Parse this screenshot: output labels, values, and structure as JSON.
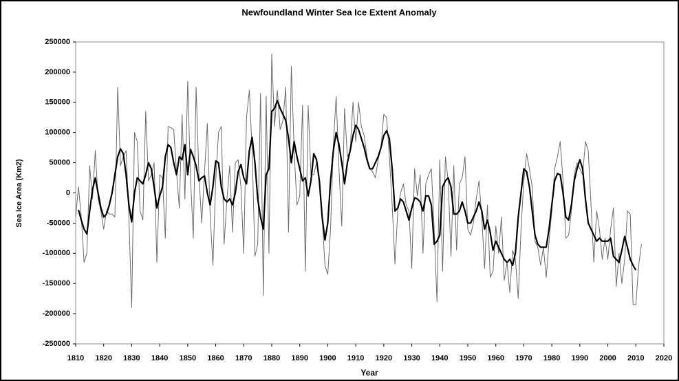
{
  "chart_data": {
    "type": "line",
    "title": "Newfoundland  Winter Sea Ice Extent Anomaly",
    "x_label": "Year",
    "y_label": "Sea Ice Area (Km2)",
    "xlim": [
      1810,
      2020
    ],
    "xticks": [
      1810,
      1820,
      1830,
      1840,
      1850,
      1860,
      1870,
      1880,
      1890,
      1900,
      1910,
      1920,
      1930,
      1940,
      1950,
      1960,
      1970,
      1980,
      1990,
      2000,
      2010,
      2020
    ],
    "ylim": [
      -250000,
      250000
    ],
    "yticks": [
      -250000,
      -200000,
      -150000,
      -100000,
      -50000,
      0,
      50000,
      100000,
      150000,
      200000,
      250000
    ],
    "grid": false,
    "x": [
      1810,
      1811,
      1812,
      1813,
      1814,
      1815,
      1816,
      1817,
      1818,
      1819,
      1820,
      1821,
      1822,
      1823,
      1824,
      1825,
      1826,
      1827,
      1828,
      1829,
      1830,
      1831,
      1832,
      1833,
      1834,
      1835,
      1836,
      1837,
      1838,
      1839,
      1840,
      1841,
      1842,
      1843,
      1844,
      1845,
      1846,
      1847,
      1848,
      1849,
      1850,
      1851,
      1852,
      1853,
      1854,
      1855,
      1856,
      1857,
      1858,
      1859,
      1860,
      1861,
      1862,
      1863,
      1864,
      1865,
      1866,
      1867,
      1868,
      1869,
      1870,
      1871,
      1872,
      1873,
      1874,
      1875,
      1876,
      1877,
      1878,
      1879,
      1880,
      1881,
      1882,
      1883,
      1884,
      1885,
      1886,
      1887,
      1888,
      1889,
      1890,
      1891,
      1892,
      1893,
      1894,
      1895,
      1896,
      1897,
      1898,
      1899,
      1900,
      1901,
      1902,
      1903,
      1904,
      1905,
      1906,
      1907,
      1908,
      1909,
      1910,
      1911,
      1912,
      1913,
      1914,
      1915,
      1916,
      1917,
      1918,
      1919,
      1920,
      1921,
      1922,
      1923,
      1924,
      1925,
      1926,
      1927,
      1928,
      1929,
      1930,
      1931,
      1932,
      1933,
      1934,
      1935,
      1936,
      1937,
      1938,
      1939,
      1940,
      1941,
      1942,
      1943,
      1944,
      1945,
      1946,
      1947,
      1948,
      1949,
      1950,
      1951,
      1952,
      1953,
      1954,
      1955,
      1956,
      1957,
      1958,
      1959,
      1960,
      1961,
      1962,
      1963,
      1964,
      1965,
      1966,
      1967,
      1968,
      1969,
      1970,
      1971,
      1972,
      1973,
      1974,
      1975,
      1976,
      1977,
      1978,
      1979,
      1980,
      1981,
      1982,
      1983,
      1984,
      1985,
      1986,
      1987,
      1988,
      1989,
      1990,
      1991,
      1992,
      1993,
      1994,
      1995,
      1996,
      1997,
      1998,
      1999,
      2000,
      2001,
      2002,
      2003,
      2004,
      2005,
      2006,
      2007,
      2008,
      2009,
      2010,
      2011,
      2012
    ],
    "series": [
      {
        "color": "#6b6b6b",
        "width": 1,
        "values": [
          -40000,
          10000,
          -40000,
          -115000,
          -100000,
          45000,
          -10000,
          70000,
          -10000,
          -30000,
          -60000,
          -30000,
          -35000,
          -35000,
          -40000,
          175000,
          45000,
          60000,
          70000,
          -40000,
          -190000,
          100000,
          85000,
          -30000,
          -45000,
          135000,
          20000,
          30000,
          50000,
          -115000,
          30000,
          25000,
          -75000,
          110000,
          108000,
          105000,
          35000,
          -25000,
          130000,
          -10000,
          185000,
          25000,
          -75000,
          175000,
          30000,
          -50000,
          35000,
          115000,
          -35000,
          -120000,
          20000,
          100000,
          110000,
          -85000,
          -10000,
          45000,
          -65000,
          50000,
          55000,
          10000,
          -100000,
          125000,
          170000,
          70000,
          -105000,
          -85000,
          165000,
          -170000,
          160000,
          -100000,
          230000,
          110000,
          170000,
          105000,
          120000,
          175000,
          -65000,
          210000,
          70000,
          -20000,
          -5000,
          145000,
          -130000,
          145000,
          30000,
          30000,
          50000,
          20000,
          -40000,
          -120000,
          -135000,
          -60000,
          80000,
          160000,
          40000,
          -55000,
          140000,
          60000,
          70000,
          150000,
          85000,
          150000,
          110000,
          95000,
          60000,
          40000,
          35000,
          25000,
          55000,
          75000,
          130000,
          125000,
          60000,
          -20000,
          -118000,
          -30000,
          0,
          15000,
          -20000,
          -30000,
          -125000,
          40000,
          -5000,
          30000,
          -100000,
          15000,
          30000,
          40000,
          -60000,
          -180000,
          55000,
          -130000,
          60000,
          20000,
          -105000,
          45000,
          -95000,
          15000,
          25000,
          60000,
          -60000,
          -70000,
          -50000,
          -10000,
          20000,
          -40000,
          -125000,
          -20000,
          -140000,
          -130000,
          -55000,
          -100000,
          -40000,
          -145000,
          -115000,
          -165000,
          -95000,
          -110000,
          -175000,
          -60000,
          20000,
          65000,
          40000,
          10000,
          -80000,
          -90000,
          -120000,
          -90000,
          -140000,
          -80000,
          -30000,
          40000,
          60000,
          85000,
          20000,
          -75000,
          -70000,
          -30000,
          30000,
          50000,
          40000,
          30000,
          85000,
          70000,
          -20000,
          -115000,
          -30000,
          -60000,
          -110000,
          -75000,
          -110000,
          -60000,
          -25000,
          -155000,
          -100000,
          -150000,
          -110000,
          -30000,
          -35000,
          -185000,
          -185000,
          -120000,
          -85000
        ]
      },
      {
        "color": "#000000",
        "width": 2.2,
        "values": [
          null,
          -28000,
          -45000,
          -60000,
          -68000,
          -30000,
          5000,
          25000,
          0,
          -25000,
          -40000,
          -35000,
          -20000,
          0,
          30000,
          60000,
          73000,
          65000,
          30000,
          -20000,
          -48000,
          0,
          25000,
          20000,
          15000,
          30000,
          50000,
          40000,
          10000,
          -25000,
          -5000,
          10000,
          60000,
          80000,
          75000,
          50000,
          30000,
          60000,
          55000,
          80000,
          30000,
          72000,
          60000,
          45000,
          20000,
          25000,
          28000,
          0,
          -20000,
          10000,
          53000,
          50000,
          10000,
          -10000,
          -15000,
          -10000,
          -20000,
          0,
          35000,
          47000,
          25000,
          15000,
          70000,
          92000,
          50000,
          -10000,
          -40000,
          -60000,
          30000,
          40000,
          135000,
          140000,
          153000,
          140000,
          130000,
          120000,
          90000,
          50000,
          85000,
          60000,
          40000,
          20000,
          25000,
          -5000,
          20000,
          65000,
          55000,
          20000,
          -40000,
          -78000,
          -50000,
          20000,
          70000,
          100000,
          80000,
          50000,
          15000,
          50000,
          70000,
          95000,
          112000,
          105000,
          90000,
          75000,
          55000,
          40000,
          40000,
          50000,
          60000,
          75000,
          95000,
          103000,
          90000,
          40000,
          -30000,
          -25000,
          -10000,
          -15000,
          -30000,
          -45000,
          -25000,
          -8000,
          -10000,
          -15000,
          -30000,
          -5000,
          -5000,
          -20000,
          -85000,
          -80000,
          -70000,
          10000,
          20000,
          25000,
          10000,
          -35000,
          -35000,
          -30000,
          -15000,
          -30000,
          -50000,
          -50000,
          -40000,
          -30000,
          -15000,
          -30000,
          -60000,
          -45000,
          -65000,
          -95000,
          -80000,
          -90000,
          -100000,
          -110000,
          -115000,
          -110000,
          -120000,
          -100000,
          -40000,
          0,
          40000,
          35000,
          10000,
          -30000,
          -70000,
          -85000,
          -90000,
          -90000,
          -90000,
          -60000,
          -20000,
          20000,
          32000,
          30000,
          0,
          -40000,
          -45000,
          -20000,
          20000,
          40000,
          55000,
          40000,
          -10000,
          -50000,
          -60000,
          -70000,
          -80000,
          -75000,
          -80000,
          -80000,
          -80000,
          -75000,
          -105000,
          -110000,
          -115000,
          -95000,
          -72000,
          -90000,
          -110000,
          -120000,
          -128000,
          null,
          null
        ]
      }
    ]
  }
}
